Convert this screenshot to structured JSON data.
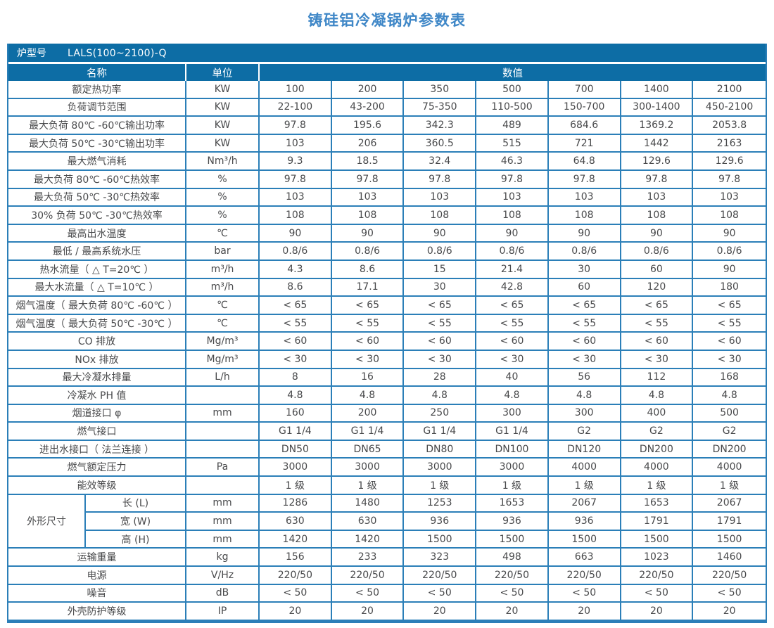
{
  "page_title": "铸硅铝冷凝锅炉参数表",
  "colors": {
    "header_blue": "#0d6da5",
    "border_blue": "#2b7fb8",
    "title_blue": "#3f87c7",
    "text_gray": "#48494b"
  },
  "table": {
    "model_label": "炉型号",
    "model_value": "LALS(100~2100)-Q",
    "headers": {
      "name": "名称",
      "unit": "单位",
      "value": "数值"
    },
    "rows": [
      {
        "name": "额定热功率",
        "unit": "KW",
        "values": [
          "100",
          "200",
          "350",
          "500",
          "700",
          "1400",
          "2100"
        ]
      },
      {
        "name": "负荷调节范围",
        "unit": "KW",
        "values": [
          "22-100",
          "43-200",
          "75-350",
          "110-500",
          "150-700",
          "300-1400",
          "450-2100"
        ]
      },
      {
        "name": "最大负荷 80℃ -60℃输出功率",
        "unit": "KW",
        "values": [
          "97.8",
          "195.6",
          "342.3",
          "489",
          "684.6",
          "1369.2",
          "2053.8"
        ]
      },
      {
        "name": "最大负荷 50℃ -30℃输出功率",
        "unit": "KW",
        "values": [
          "103",
          "206",
          "360.5",
          "515",
          "721",
          "1442",
          "2163"
        ]
      },
      {
        "name": "最大燃气消耗",
        "unit": "Nm³/h",
        "values": [
          "9.3",
          "18.5",
          "32.4",
          "46.3",
          "64.8",
          "129.6",
          "129.6"
        ]
      },
      {
        "name": "最大负荷 80℃ -60℃热效率",
        "unit": "%",
        "values": [
          "97.8",
          "97.8",
          "97.8",
          "97.8",
          "97.8",
          "97.8",
          "97.8"
        ]
      },
      {
        "name": "最大负荷 50℃ -30℃热效率",
        "unit": "%",
        "values": [
          "103",
          "103",
          "103",
          "103",
          "103",
          "103",
          "103"
        ]
      },
      {
        "name": "30% 负荷 50℃ -30℃热效率",
        "unit": "%",
        "values": [
          "108",
          "108",
          "108",
          "108",
          "108",
          "108",
          "108"
        ]
      },
      {
        "name": "最高出水温度",
        "unit": "℃",
        "values": [
          "90",
          "90",
          "90",
          "90",
          "90",
          "90",
          "90"
        ]
      },
      {
        "name": "最低 / 最高系统水压",
        "unit": "bar",
        "values": [
          "0.8/6",
          "0.8/6",
          "0.8/6",
          "0.8/6",
          "0.8/6",
          "0.8/6",
          "0.8/6"
        ]
      },
      {
        "name": "热水流量（ △ T=20℃ ）",
        "unit": "m³/h",
        "values": [
          "4.3",
          "8.6",
          "15",
          "21.4",
          "30",
          "60",
          "90"
        ]
      },
      {
        "name": "最大水流量（ △ T=10℃ ）",
        "unit": "m³/h",
        "values": [
          "8.6",
          "17.1",
          "30",
          "42.8",
          "60",
          "120",
          "180"
        ]
      },
      {
        "name": "烟气温度（ 最大负荷 80℃ -60℃ ）",
        "unit": "℃",
        "values": [
          "< 65",
          "< 65",
          "< 65",
          "< 65",
          "< 65",
          "< 65",
          "< 65"
        ]
      },
      {
        "name": "烟气温度（ 最大负荷 50℃ -30℃ ）",
        "unit": "℃",
        "values": [
          "< 55",
          "< 55",
          "< 55",
          "< 55",
          "< 55",
          "< 55",
          "< 55"
        ]
      },
      {
        "name": "CO 排放",
        "unit": "Mg/m³",
        "values": [
          "< 60",
          "< 60",
          "< 60",
          "< 60",
          "< 60",
          "< 60",
          "< 60"
        ]
      },
      {
        "name": "NOx 排放",
        "unit": "Mg/m³",
        "values": [
          "< 30",
          "< 30",
          "< 30",
          "< 30",
          "< 30",
          "< 30",
          "< 30"
        ]
      },
      {
        "name": "最大冷凝水排量",
        "unit": "L/h",
        "values": [
          "8",
          "16",
          "28",
          "40",
          "56",
          "112",
          "168"
        ]
      },
      {
        "name": "冷凝水 PH 值",
        "unit": "",
        "values": [
          "4.8",
          "4.8",
          "4.8",
          "4.8",
          "4.8",
          "4.8",
          "4.8"
        ]
      },
      {
        "name": "烟道接口 φ",
        "unit": "mm",
        "values": [
          "160",
          "200",
          "250",
          "300",
          "300",
          "400",
          "500"
        ]
      },
      {
        "name": "燃气接口",
        "unit": "",
        "values": [
          "G1 1/4",
          "G1 1/4",
          "G1 1/4",
          "G1 1/4",
          "G2",
          "G2",
          "G2"
        ]
      },
      {
        "name": "进出水接口（ 法兰连接 ）",
        "unit": "",
        "values": [
          "DN50",
          "DN65",
          "DN80",
          "DN100",
          "DN120",
          "DN200",
          "DN200"
        ]
      },
      {
        "name": "燃气额定压力",
        "unit": "Pa",
        "values": [
          "3000",
          "3000",
          "3000",
          "3000",
          "4000",
          "4000",
          "4000"
        ]
      },
      {
        "name": "能效等级",
        "unit": "",
        "values": [
          "1 级",
          "1 级",
          "1 级",
          "1 级",
          "1 级",
          "1 级",
          "1 级"
        ]
      },
      {
        "group": "外形尺寸",
        "group_span": 3,
        "name": "长 (L)",
        "unit": "mm",
        "values": [
          "1286",
          "1480",
          "1253",
          "1653",
          "2067",
          "1653",
          "2067"
        ]
      },
      {
        "in_group": true,
        "name": "宽 (W)",
        "unit": "mm",
        "values": [
          "630",
          "630",
          "936",
          "936",
          "936",
          "1791",
          "1791"
        ]
      },
      {
        "in_group": true,
        "name": "高 (H)",
        "unit": "mm",
        "values": [
          "1420",
          "1420",
          "1500",
          "1500",
          "1500",
          "1500",
          "1500"
        ]
      },
      {
        "name": "运输重量",
        "unit": "kg",
        "values": [
          "156",
          "233",
          "323",
          "498",
          "663",
          "1023",
          "1460"
        ]
      },
      {
        "name": "电源",
        "unit": "V/Hz",
        "values": [
          "220/50",
          "220/50",
          "220/50",
          "220/50",
          "220/50",
          "220/50",
          "220/50"
        ]
      },
      {
        "name": "噪音",
        "unit": "dB",
        "values": [
          "< 50",
          "< 50",
          "< 50",
          "< 50",
          "< 50",
          "< 50",
          "< 50"
        ]
      },
      {
        "name": "外壳防护等级",
        "unit": "IP",
        "values": [
          "20",
          "20",
          "20",
          "20",
          "20",
          "20",
          "20"
        ]
      }
    ]
  }
}
